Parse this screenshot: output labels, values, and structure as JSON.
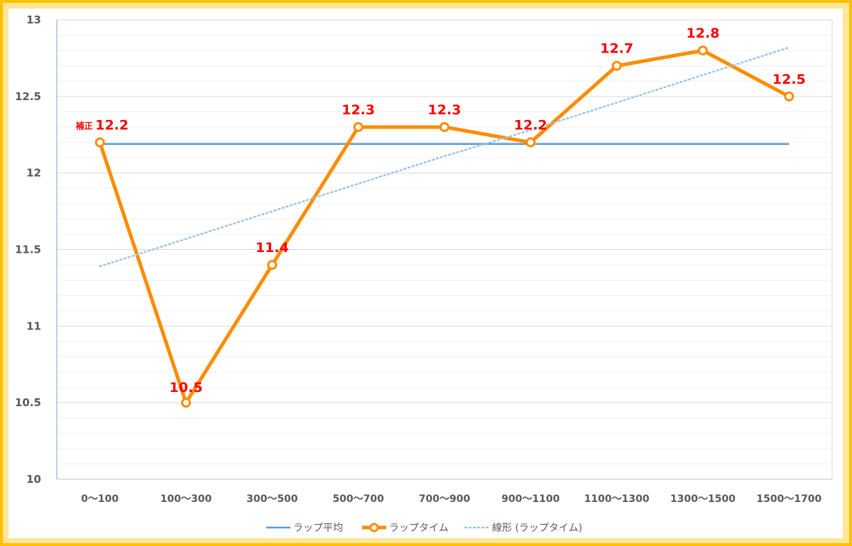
{
  "chart_data": {
    "type": "line",
    "categories": [
      "0～100",
      "100～300",
      "300～500",
      "500～700",
      "700～900",
      "900～1100",
      "1100～1300",
      "1300～1500",
      "1500～1700"
    ],
    "series": [
      {
        "name": "ラップ平均",
        "values": [
          12.19,
          12.19,
          12.19,
          12.19,
          12.19,
          12.19,
          12.19,
          12.19,
          12.19
        ],
        "color": "#5b9bd5",
        "style": "solid"
      },
      {
        "name": "ラップタイム",
        "values": [
          12.2,
          10.5,
          11.4,
          12.3,
          12.3,
          12.2,
          12.7,
          12.8,
          12.5
        ],
        "color": "#ff8c00",
        "style": "solid-markers"
      },
      {
        "name": "線形 (ラップタイム)",
        "values": [
          11.39,
          11.57,
          11.75,
          11.93,
          12.11,
          12.28,
          12.46,
          12.64,
          12.82
        ],
        "color": "#9dc3e6",
        "style": "dotted"
      }
    ],
    "data_labels": [
      "12.2",
      "10.5",
      "11.4",
      "12.3",
      "12.3",
      "12.2",
      "12.7",
      "12.8",
      "12.5"
    ],
    "first_label_prefix": "補正",
    "data_label_color": "#ff0000",
    "y_ticks": [
      "10",
      "10.5",
      "11",
      "11.5",
      "12",
      "12.5",
      "13"
    ],
    "ylim": [
      10,
      13
    ],
    "grid": true,
    "legend_position": "bottom",
    "frame_color": "#ffc000",
    "frame_fill": "#ffe699"
  }
}
